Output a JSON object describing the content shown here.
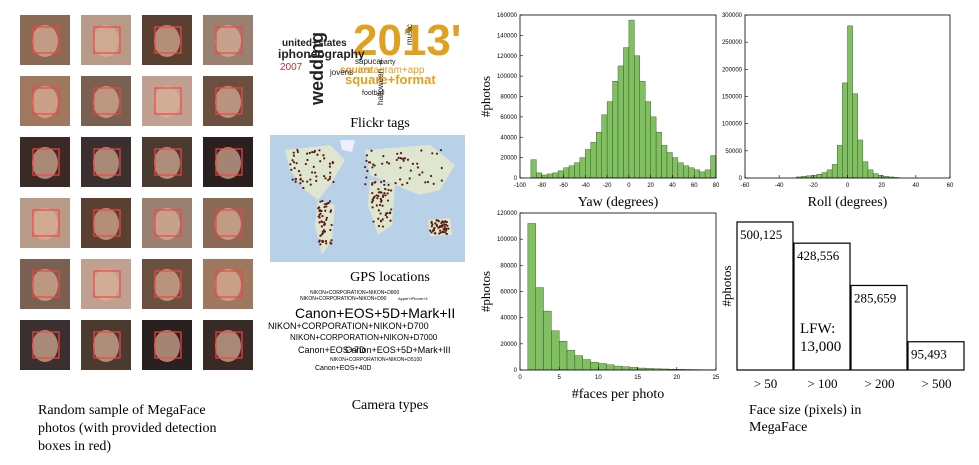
{
  "photo_grid": {
    "caption": [
      "Random sample of MegaFace",
      "photos (with provided detection",
      "boxes in red)"
    ]
  },
  "flickr_tags": {
    "words": [
      "2013'",
      "united+states",
      "iphoneography",
      "2007",
      "wedding",
      "square+format",
      "instagram+app",
      "sapucai",
      "square",
      "music",
      "jovens",
      "party",
      "football",
      "halloween"
    ],
    "caption": "Flickr tags"
  },
  "gps_map": {
    "caption": "GPS locations"
  },
  "camera_types": {
    "words": [
      "NIKON+CORPORATION+NIKON+D800",
      "NIKON+CORPORATION+NIKON+D90",
      "Apple+iPhone+4",
      "Canon+EOS+5D+Mark+II",
      "NIKON+CORPORATION+NIKON+D700",
      "NIKON+CORPORATION+NIKON+D7000",
      "Canon+EOS+7D",
      "Canon+EOS+5D+Mark+III",
      "NIKON+CORPORATION+NIKON+D5100",
      "Canon+EOS+40D"
    ],
    "caption": "Camera types"
  },
  "chart_data": [
    {
      "type": "histogram",
      "x_label": "Yaw (degrees)",
      "y_label": "#photos",
      "color": "#80c060",
      "bins": [
        -90,
        -85,
        -80,
        -75,
        -70,
        -65,
        -60,
        -55,
        -50,
        -45,
        -40,
        -35,
        -30,
        -25,
        -20,
        -15,
        -10,
        -5,
        0,
        5,
        10,
        15,
        20,
        25,
        30,
        35,
        40,
        45,
        50,
        55,
        60,
        65,
        70,
        75,
        80
      ],
      "values": [
        18000,
        5000,
        3000,
        4000,
        5000,
        7000,
        10000,
        12000,
        15000,
        20000,
        28000,
        35000,
        45000,
        62000,
        75000,
        95000,
        110000,
        128000,
        155000,
        120000,
        95000,
        75000,
        60000,
        45000,
        32000,
        25000,
        20000,
        15000,
        12000,
        10000,
        8000,
        6000,
        8000,
        22000
      ],
      "xlim": [
        -100,
        80
      ],
      "xticks": [
        -100,
        -80,
        -60,
        -40,
        -20,
        0,
        20,
        40,
        60,
        80
      ],
      "ylim": [
        0,
        160000
      ],
      "yticks": [
        0,
        20000,
        40000,
        60000,
        80000,
        100000,
        120000,
        140000,
        160000
      ]
    },
    {
      "type": "histogram",
      "x_label": "Roll (degrees)",
      "y_label": "",
      "color": "#80c060",
      "bins": [
        -30,
        -27,
        -24,
        -21,
        -18,
        -15,
        -12,
        -9,
        -6,
        -3,
        0,
        3,
        6,
        9,
        12,
        15,
        18,
        21,
        24,
        27,
        30
      ],
      "values": [
        2000,
        3000,
        4000,
        5000,
        7000,
        10000,
        15000,
        25000,
        60000,
        175000,
        280000,
        155000,
        70000,
        30000,
        15000,
        8000,
        5000,
        3000,
        2000,
        1000
      ],
      "xlim": [
        -60,
        60
      ],
      "xticks": [
        -60,
        -40,
        -20,
        0,
        20,
        40,
        60
      ],
      "ylim": [
        0,
        300000
      ],
      "yticks": [
        0,
        50000,
        100000,
        150000,
        200000,
        250000,
        300000
      ]
    },
    {
      "type": "histogram",
      "x_label": "#faces per photo",
      "y_label": "#photos",
      "color": "#80c060",
      "bins": [
        1,
        2,
        3,
        4,
        5,
        6,
        7,
        8,
        9,
        10,
        11,
        12,
        13,
        14,
        15,
        16,
        17,
        18,
        19,
        20,
        21,
        22,
        23,
        24,
        25
      ],
      "values": [
        112000,
        63000,
        45000,
        30000,
        22000,
        15000,
        11000,
        8000,
        6000,
        5000,
        4000,
        3000,
        2500,
        2000,
        1500,
        1200,
        1000,
        800,
        600,
        500,
        400,
        300,
        250,
        200
      ],
      "xlim": [
        0,
        25
      ],
      "xticks": [
        0,
        5,
        10,
        15,
        20,
        25
      ],
      "ylim": [
        0,
        120000
      ],
      "yticks": [
        0,
        20000,
        40000,
        60000,
        80000,
        100000,
        120000
      ]
    },
    {
      "type": "bar",
      "x_label": [
        "Face size (pixels) in",
        "MegaFace"
      ],
      "y_label": "#photos",
      "categories": [
        "> 50",
        "> 100",
        "> 200",
        "> 500"
      ],
      "values": [
        500125,
        428556,
        285659,
        95493
      ],
      "value_labels": [
        "500,125",
        "428,556",
        "285,659",
        "95,493"
      ],
      "annotation": [
        "LFW:",
        "13,000"
      ]
    }
  ]
}
